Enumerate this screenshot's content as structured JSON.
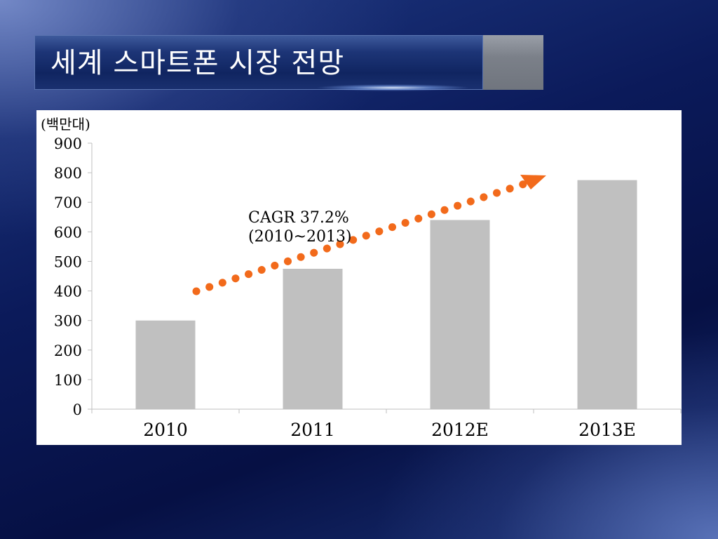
{
  "slide": {
    "title": "세계 스마트폰 시장 전망"
  },
  "chart_data": {
    "type": "bar",
    "unit_label": "(백만대)",
    "categories": [
      "2010",
      "2011",
      "2012E",
      "2013E"
    ],
    "values": [
      300,
      475,
      640,
      775
    ],
    "ylim": [
      0,
      900
    ],
    "yticks": [
      "0",
      "100",
      "200",
      "300",
      "400",
      "500",
      "600",
      "700",
      "800",
      "900"
    ],
    "grid": false,
    "bar_color": "#c0c0c0",
    "annotation": {
      "line1": "CAGR 37.2%",
      "line2": "(2010~2013)",
      "arrow_color": "#f26a1b"
    }
  }
}
